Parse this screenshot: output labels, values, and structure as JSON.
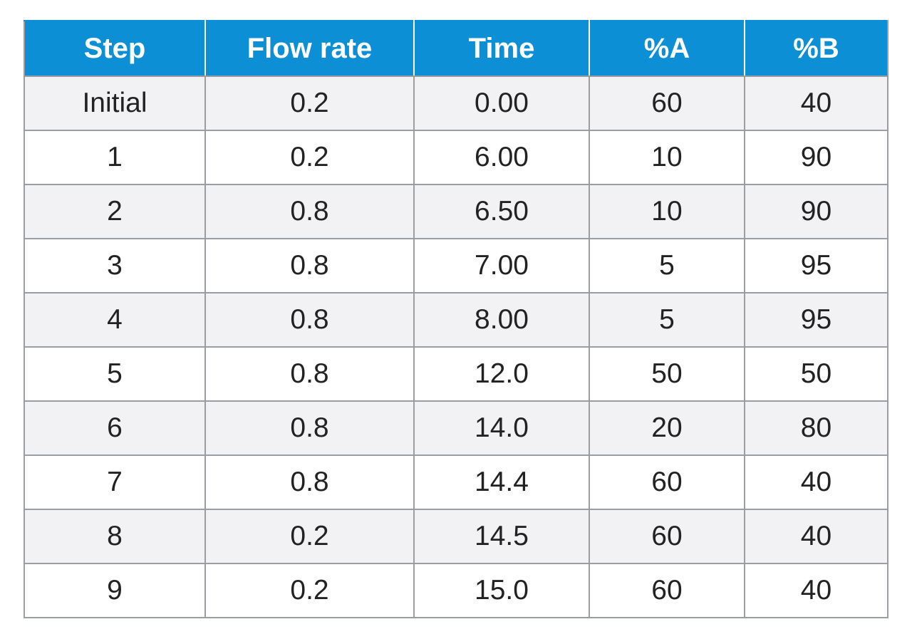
{
  "table": {
    "headers": [
      "Step",
      "Flow rate",
      "Time",
      "%A",
      "%B"
    ],
    "rows": [
      [
        "Initial",
        "0.2",
        "0.00",
        "60",
        "40"
      ],
      [
        "1",
        "0.2",
        "6.00",
        "10",
        "90"
      ],
      [
        "2",
        "0.8",
        "6.50",
        "10",
        "90"
      ],
      [
        "3",
        "0.8",
        "7.00",
        "5",
        "95"
      ],
      [
        "4",
        "0.8",
        "8.00",
        "5",
        "95"
      ],
      [
        "5",
        "0.8",
        "12.0",
        "50",
        "50"
      ],
      [
        "6",
        "0.8",
        "14.0",
        "20",
        "80"
      ],
      [
        "7",
        "0.8",
        "14.4",
        "60",
        "40"
      ],
      [
        "8",
        "0.2",
        "14.5",
        "60",
        "40"
      ],
      [
        "9",
        "0.2",
        "15.0",
        "60",
        "40"
      ]
    ]
  },
  "colors": {
    "header_background": "#0c8fd5",
    "header_text": "#ffffff",
    "row_shaded": "#f2f2f4",
    "row_plain": "#ffffff",
    "grid_line": "#9a9ea3"
  }
}
